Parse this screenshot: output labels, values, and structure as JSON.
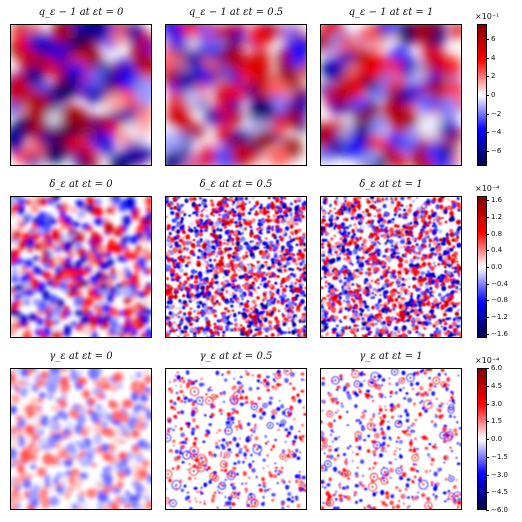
{
  "chart_data": {
    "type": "heatmap",
    "colormap": "seismic",
    "rows": [
      {
        "name": "q",
        "titles": [
          "q_ε − 1 at εt = 0",
          "q_ε − 1 at εt = 0.5",
          "q_ε − 1 at εt = 1"
        ],
        "colorbar": {
          "multiplier": "×10⁻¹",
          "range": [
            -7.6,
            7.6
          ],
          "ticks": [
            {
              "value": 6,
              "label": "6"
            },
            {
              "value": 4,
              "label": "4"
            },
            {
              "value": 2,
              "label": "2"
            },
            {
              "value": 0,
              "label": "0"
            },
            {
              "value": -2,
              "label": "−2"
            },
            {
              "value": -4,
              "label": "−4"
            },
            {
              "value": -6,
              "label": "−6"
            }
          ]
        },
        "texture": [
          "smooth",
          "smooth",
          "smooth"
        ]
      },
      {
        "name": "delta",
        "titles": [
          "δ_ε at εt = 0",
          "δ_ε at εt = 0.5",
          "δ_ε at εt = 1"
        ],
        "colorbar": {
          "multiplier": "×10⁻⁴",
          "range": [
            -1.7,
            1.7
          ],
          "ticks": [
            {
              "value": 1.6,
              "label": "1.6"
            },
            {
              "value": 1.2,
              "label": "1.2"
            },
            {
              "value": 0.8,
              "label": "0.8"
            },
            {
              "value": 0.4,
              "label": "0.4"
            },
            {
              "value": 0.0,
              "label": "0.0"
            },
            {
              "value": -0.4,
              "label": "−0.4"
            },
            {
              "value": -0.8,
              "label": "−0.8"
            },
            {
              "value": -1.2,
              "label": "−1.2"
            },
            {
              "value": -1.6,
              "label": "−1.6"
            }
          ]
        },
        "texture": [
          "medium",
          "fine",
          "fine"
        ]
      },
      {
        "name": "gamma",
        "titles": [
          "γ_ε at εt = 0",
          "γ_ε at εt = 0.5",
          "γ_ε at εt = 1"
        ],
        "colorbar": {
          "multiplier": "×10⁻⁴",
          "range": [
            -6.0,
            6.0
          ],
          "ticks": [
            {
              "value": 6.0,
              "label": "6.0"
            },
            {
              "value": 4.5,
              "label": "4.5"
            },
            {
              "value": 3.0,
              "label": "3.0"
            },
            {
              "value": 1.5,
              "label": "1.5"
            },
            {
              "value": 0.0,
              "label": "0.0"
            },
            {
              "value": -1.5,
              "label": "−1.5"
            },
            {
              "value": -3.0,
              "label": "−3.0"
            },
            {
              "value": -4.5,
              "label": "−4.5"
            },
            {
              "value": -6.0,
              "label": "−6.0"
            }
          ]
        },
        "texture": [
          "faint",
          "sparse",
          "sparse"
        ]
      }
    ]
  }
}
